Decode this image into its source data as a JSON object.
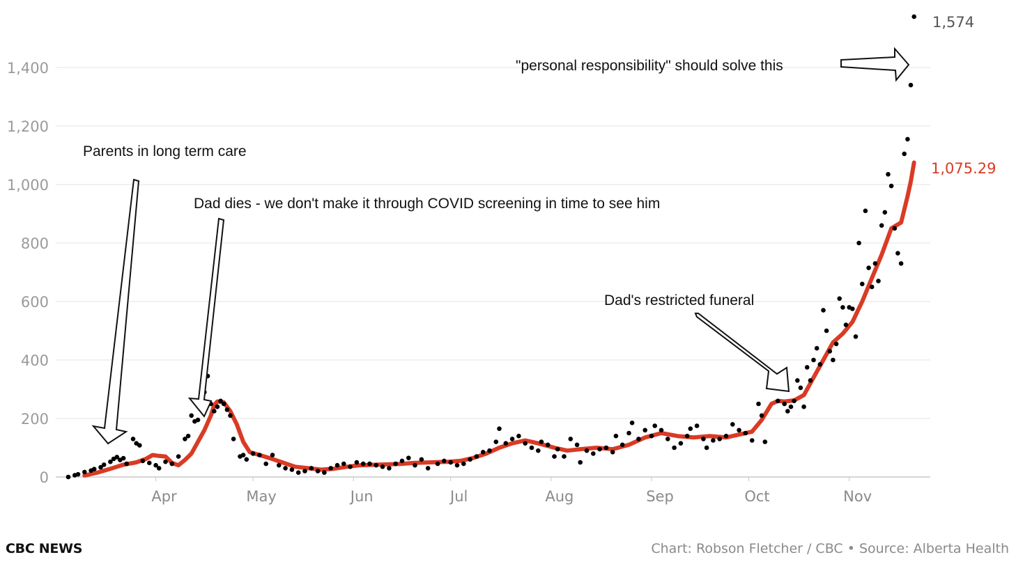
{
  "chart_data": {
    "type": "scatter",
    "ylim": [
      0,
      1600
    ],
    "yticks": [
      0,
      200,
      400,
      600,
      800,
      1000,
      1200,
      1400
    ],
    "ytick_labels": [
      "0",
      "200",
      "400",
      "600",
      "800",
      "1,000",
      "1,200",
      "1,400"
    ],
    "grid": true,
    "x_start_date": "2020-03-05",
    "x_end_date": "2020-11-21",
    "months": [
      {
        "label": "Apr",
        "date": "2020-04-01"
      },
      {
        "label": "May",
        "date": "2020-05-01"
      },
      {
        "label": "Jun",
        "date": "2020-06-01"
      },
      {
        "label": "Jul",
        "date": "2020-07-01"
      },
      {
        "label": "Aug",
        "date": "2020-08-01"
      },
      {
        "label": "Sep",
        "date": "2020-09-01"
      },
      {
        "label": "Oct",
        "date": "2020-10-01"
      },
      {
        "label": "Nov",
        "date": "2020-11-01"
      }
    ],
    "series": [
      {
        "kind": "daily",
        "color": "#000000",
        "points": [
          [
            "2020-03-05",
            0
          ],
          [
            "2020-03-07",
            6
          ],
          [
            "2020-03-08",
            9
          ],
          [
            "2020-03-10",
            17
          ],
          [
            "2020-03-12",
            22
          ],
          [
            "2020-03-13",
            27
          ],
          [
            "2020-03-15",
            33
          ],
          [
            "2020-03-16",
            42
          ],
          [
            "2020-03-18",
            52
          ],
          [
            "2020-03-19",
            62
          ],
          [
            "2020-03-20",
            68
          ],
          [
            "2020-03-21",
            58
          ],
          [
            "2020-03-22",
            64
          ],
          [
            "2020-03-23",
            45
          ],
          [
            "2020-03-25",
            130
          ],
          [
            "2020-03-26",
            115
          ],
          [
            "2020-03-27",
            108
          ],
          [
            "2020-03-28",
            55
          ],
          [
            "2020-03-30",
            48
          ],
          [
            "2020-04-01",
            40
          ],
          [
            "2020-04-02",
            30
          ],
          [
            "2020-04-04",
            52
          ],
          [
            "2020-04-06",
            45
          ],
          [
            "2020-04-08",
            70
          ],
          [
            "2020-04-10",
            130
          ],
          [
            "2020-04-11",
            140
          ],
          [
            "2020-04-12",
            210
          ],
          [
            "2020-04-13",
            190
          ],
          [
            "2020-04-14",
            195
          ],
          [
            "2020-04-15",
            265
          ],
          [
            "2020-04-16",
            290
          ],
          [
            "2020-04-17",
            345
          ],
          [
            "2020-04-18",
            250
          ],
          [
            "2020-04-19",
            225
          ],
          [
            "2020-04-20",
            240
          ],
          [
            "2020-04-21",
            260
          ],
          [
            "2020-04-22",
            250
          ],
          [
            "2020-04-23",
            230
          ],
          [
            "2020-04-24",
            210
          ],
          [
            "2020-04-25",
            130
          ],
          [
            "2020-04-27",
            70
          ],
          [
            "2020-04-28",
            75
          ],
          [
            "2020-04-29",
            60
          ],
          [
            "2020-05-01",
            80
          ],
          [
            "2020-05-03",
            75
          ],
          [
            "2020-05-05",
            45
          ],
          [
            "2020-05-07",
            75
          ],
          [
            "2020-05-09",
            40
          ],
          [
            "2020-05-11",
            30
          ],
          [
            "2020-05-13",
            25
          ],
          [
            "2020-05-15",
            15
          ],
          [
            "2020-05-17",
            20
          ],
          [
            "2020-05-19",
            30
          ],
          [
            "2020-05-21",
            20
          ],
          [
            "2020-05-23",
            15
          ],
          [
            "2020-05-25",
            30
          ],
          [
            "2020-05-27",
            40
          ],
          [
            "2020-05-29",
            45
          ],
          [
            "2020-05-31",
            35
          ],
          [
            "2020-06-02",
            50
          ],
          [
            "2020-06-04",
            45
          ],
          [
            "2020-06-06",
            45
          ],
          [
            "2020-06-08",
            40
          ],
          [
            "2020-06-10",
            35
          ],
          [
            "2020-06-12",
            30
          ],
          [
            "2020-06-14",
            45
          ],
          [
            "2020-06-16",
            55
          ],
          [
            "2020-06-18",
            65
          ],
          [
            "2020-06-20",
            40
          ],
          [
            "2020-06-22",
            60
          ],
          [
            "2020-06-24",
            30
          ],
          [
            "2020-06-27",
            45
          ],
          [
            "2020-06-29",
            55
          ],
          [
            "2020-07-01",
            50
          ],
          [
            "2020-07-03",
            40
          ],
          [
            "2020-07-05",
            45
          ],
          [
            "2020-07-07",
            60
          ],
          [
            "2020-07-09",
            70
          ],
          [
            "2020-07-11",
            85
          ],
          [
            "2020-07-13",
            90
          ],
          [
            "2020-07-15",
            120
          ],
          [
            "2020-07-16",
            165
          ],
          [
            "2020-07-18",
            115
          ],
          [
            "2020-07-20",
            130
          ],
          [
            "2020-07-22",
            140
          ],
          [
            "2020-07-24",
            115
          ],
          [
            "2020-07-26",
            100
          ],
          [
            "2020-07-28",
            90
          ],
          [
            "2020-07-29",
            120
          ],
          [
            "2020-07-31",
            110
          ],
          [
            "2020-08-02",
            70
          ],
          [
            "2020-08-03",
            95
          ],
          [
            "2020-08-05",
            70
          ],
          [
            "2020-08-07",
            130
          ],
          [
            "2020-08-09",
            110
          ],
          [
            "2020-08-10",
            50
          ],
          [
            "2020-08-12",
            90
          ],
          [
            "2020-08-14",
            80
          ],
          [
            "2020-08-16",
            95
          ],
          [
            "2020-08-18",
            100
          ],
          [
            "2020-08-20",
            85
          ],
          [
            "2020-08-21",
            140
          ],
          [
            "2020-08-23",
            110
          ],
          [
            "2020-08-25",
            150
          ],
          [
            "2020-08-26",
            185
          ],
          [
            "2020-08-28",
            130
          ],
          [
            "2020-08-30",
            160
          ],
          [
            "2020-09-01",
            140
          ],
          [
            "2020-09-02",
            175
          ],
          [
            "2020-09-04",
            160
          ],
          [
            "2020-09-06",
            130
          ],
          [
            "2020-09-08",
            100
          ],
          [
            "2020-09-10",
            115
          ],
          [
            "2020-09-12",
            140
          ],
          [
            "2020-09-13",
            165
          ],
          [
            "2020-09-15",
            175
          ],
          [
            "2020-09-17",
            130
          ],
          [
            "2020-09-18",
            100
          ],
          [
            "2020-09-20",
            125
          ],
          [
            "2020-09-22",
            130
          ],
          [
            "2020-09-24",
            140
          ],
          [
            "2020-09-26",
            180
          ],
          [
            "2020-09-28",
            160
          ],
          [
            "2020-09-30",
            150
          ],
          [
            "2020-10-02",
            125
          ],
          [
            "2020-10-04",
            250
          ],
          [
            "2020-10-05",
            210
          ],
          [
            "2020-10-06",
            120
          ],
          [
            "2020-10-08",
            310
          ],
          [
            "2020-10-09",
            350
          ],
          [
            "2020-10-10",
            260
          ],
          [
            "2020-10-12",
            250
          ],
          [
            "2020-10-13",
            225
          ],
          [
            "2020-10-14",
            240
          ],
          [
            "2020-10-15",
            260
          ],
          [
            "2020-10-16",
            330
          ],
          [
            "2020-10-17",
            305
          ],
          [
            "2020-10-18",
            240
          ],
          [
            "2020-10-19",
            375
          ],
          [
            "2020-10-20",
            330
          ],
          [
            "2020-10-21",
            400
          ],
          [
            "2020-10-22",
            440
          ],
          [
            "2020-10-23",
            385
          ],
          [
            "2020-10-24",
            570
          ],
          [
            "2020-10-25",
            500
          ],
          [
            "2020-10-26",
            430
          ],
          [
            "2020-10-27",
            400
          ],
          [
            "2020-10-28",
            455
          ],
          [
            "2020-10-29",
            610
          ],
          [
            "2020-10-30",
            580
          ],
          [
            "2020-10-31",
            520
          ],
          [
            "2020-11-01",
            580
          ],
          [
            "2020-11-02",
            575
          ],
          [
            "2020-11-03",
            480
          ],
          [
            "2020-11-04",
            800
          ],
          [
            "2020-11-05",
            660
          ],
          [
            "2020-11-06",
            910
          ],
          [
            "2020-11-07",
            715
          ],
          [
            "2020-11-08",
            650
          ],
          [
            "2020-11-09",
            730
          ],
          [
            "2020-11-10",
            670
          ],
          [
            "2020-11-11",
            860
          ],
          [
            "2020-11-12",
            905
          ],
          [
            "2020-11-13",
            1035
          ],
          [
            "2020-11-14",
            995
          ],
          [
            "2020-11-15",
            850
          ],
          [
            "2020-11-16",
            765
          ],
          [
            "2020-11-17",
            730
          ],
          [
            "2020-11-18",
            1105
          ],
          [
            "2020-11-19",
            1155
          ],
          [
            "2020-11-20",
            1340
          ],
          [
            "2020-11-21",
            1574
          ]
        ]
      },
      {
        "kind": "rolling-average",
        "color": "#d93b25",
        "points": [
          [
            "2020-03-10",
            5
          ],
          [
            "2020-03-14",
            15
          ],
          [
            "2020-03-18",
            28
          ],
          [
            "2020-03-22",
            42
          ],
          [
            "2020-03-26",
            50
          ],
          [
            "2020-03-29",
            62
          ],
          [
            "2020-03-31",
            75
          ],
          [
            "2020-04-02",
            72
          ],
          [
            "2020-04-04",
            70
          ],
          [
            "2020-04-06",
            48
          ],
          [
            "2020-04-08",
            40
          ],
          [
            "2020-04-10",
            58
          ],
          [
            "2020-04-12",
            80
          ],
          [
            "2020-04-14",
            120
          ],
          [
            "2020-04-16",
            160
          ],
          [
            "2020-04-18",
            210
          ],
          [
            "2020-04-19",
            245
          ],
          [
            "2020-04-20",
            258
          ],
          [
            "2020-04-22",
            255
          ],
          [
            "2020-04-24",
            225
          ],
          [
            "2020-04-26",
            180
          ],
          [
            "2020-04-28",
            120
          ],
          [
            "2020-04-30",
            85
          ],
          [
            "2020-05-03",
            75
          ],
          [
            "2020-05-06",
            65
          ],
          [
            "2020-05-10",
            50
          ],
          [
            "2020-05-14",
            35
          ],
          [
            "2020-05-18",
            30
          ],
          [
            "2020-05-22",
            25
          ],
          [
            "2020-05-26",
            28
          ],
          [
            "2020-05-30",
            35
          ],
          [
            "2020-06-03",
            40
          ],
          [
            "2020-06-08",
            42
          ],
          [
            "2020-06-12",
            43
          ],
          [
            "2020-06-16",
            45
          ],
          [
            "2020-06-20",
            48
          ],
          [
            "2020-06-25",
            50
          ],
          [
            "2020-06-30",
            52
          ],
          [
            "2020-07-04",
            55
          ],
          [
            "2020-07-08",
            65
          ],
          [
            "2020-07-12",
            80
          ],
          [
            "2020-07-16",
            100
          ],
          [
            "2020-07-20",
            115
          ],
          [
            "2020-07-24",
            125
          ],
          [
            "2020-07-28",
            115
          ],
          [
            "2020-08-02",
            100
          ],
          [
            "2020-08-06",
            90
          ],
          [
            "2020-08-10",
            95
          ],
          [
            "2020-08-15",
            100
          ],
          [
            "2020-08-20",
            95
          ],
          [
            "2020-08-25",
            110
          ],
          [
            "2020-08-30",
            135
          ],
          [
            "2020-09-04",
            150
          ],
          [
            "2020-09-09",
            140
          ],
          [
            "2020-09-14",
            135
          ],
          [
            "2020-09-19",
            140
          ],
          [
            "2020-09-24",
            135
          ],
          [
            "2020-09-28",
            145
          ],
          [
            "2020-10-02",
            155
          ],
          [
            "2020-10-05",
            195
          ],
          [
            "2020-10-08",
            250
          ],
          [
            "2020-10-10",
            260
          ],
          [
            "2020-10-12",
            258
          ],
          [
            "2020-10-15",
            262
          ],
          [
            "2020-10-18",
            280
          ],
          [
            "2020-10-21",
            340
          ],
          [
            "2020-10-24",
            400
          ],
          [
            "2020-10-27",
            460
          ],
          [
            "2020-10-30",
            490
          ],
          [
            "2020-11-02",
            530
          ],
          [
            "2020-11-05",
            600
          ],
          [
            "2020-11-08",
            680
          ],
          [
            "2020-11-11",
            760
          ],
          [
            "2020-11-14",
            850
          ],
          [
            "2020-11-17",
            870
          ],
          [
            "2020-11-19",
            960
          ],
          [
            "2020-11-20",
            1010
          ],
          [
            "2020-11-21",
            1075.29
          ]
        ]
      }
    ],
    "end_labels": {
      "daily": {
        "text": "1,574",
        "color": "#555555"
      },
      "average": {
        "text": "1,075.29",
        "color": "#d93b25"
      }
    },
    "annotations": [
      {
        "text": "Parents in long term care"
      },
      {
        "text": "Dad dies - we don't make it through COVID screening in time to see him"
      },
      {
        "text": "Dad's restricted funeral"
      },
      {
        "text": "\"personal responsibility\" should solve this"
      }
    ]
  },
  "footer": {
    "brand": "CBC NEWS",
    "credit": "Chart: Robson Fletcher / CBC • Source: Alberta Health"
  }
}
